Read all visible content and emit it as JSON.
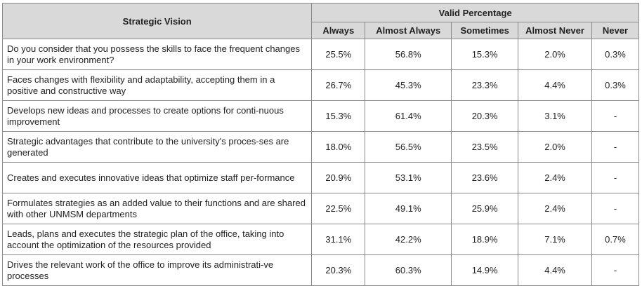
{
  "header": {
    "row_label": "Strategic Vision",
    "group_label": "Valid Percentage",
    "columns": [
      "Always",
      "Almost Always",
      "Sometimes",
      "Almost Never",
      "Never"
    ]
  },
  "rows": [
    {
      "label": "Do you consider that you possess the skills to face the frequent changes in your work environment?",
      "values": [
        "25.5%",
        "56.8%",
        "15.3%",
        "2.0%",
        "0.3%"
      ]
    },
    {
      "label": "Faces changes with flexibility and adaptability, accepting them in a positive and constructive way",
      "values": [
        "26.7%",
        "45.3%",
        "23.3%",
        "4.4%",
        "0.3%"
      ]
    },
    {
      "label": "Develops new ideas and processes to create options for conti-nuous improvement",
      "values": [
        "15.3%",
        "61.4%",
        "20.3%",
        "3.1%",
        "-"
      ]
    },
    {
      "label": "Strategic advantages that contribute to the university's proces-ses are generated",
      "values": [
        "18.0%",
        "56.5%",
        "23.5%",
        "2.0%",
        "-"
      ]
    },
    {
      "label": "Creates and executes innovative ideas that optimize staff per-formance",
      "values": [
        "20.9%",
        "53.1%",
        "23.6%",
        "2.4%",
        "-"
      ]
    },
    {
      "label": "Formulates strategies as an added value to their functions and are shared with other UNMSM departments",
      "values": [
        "22.5%",
        "49.1%",
        "25.9%",
        "2.4%",
        "-"
      ]
    },
    {
      "label": "Leads, plans and executes the strategic plan of the office, taking into account the optimization of the resources provided",
      "values": [
        "31.1%",
        "42.2%",
        "18.9%",
        "7.1%",
        "0.7%"
      ]
    },
    {
      "label": "Drives the relevant work of the office to improve its administrati-ve processes",
      "values": [
        "20.3%",
        "60.3%",
        "14.9%",
        "4.4%",
        "-"
      ]
    }
  ]
}
